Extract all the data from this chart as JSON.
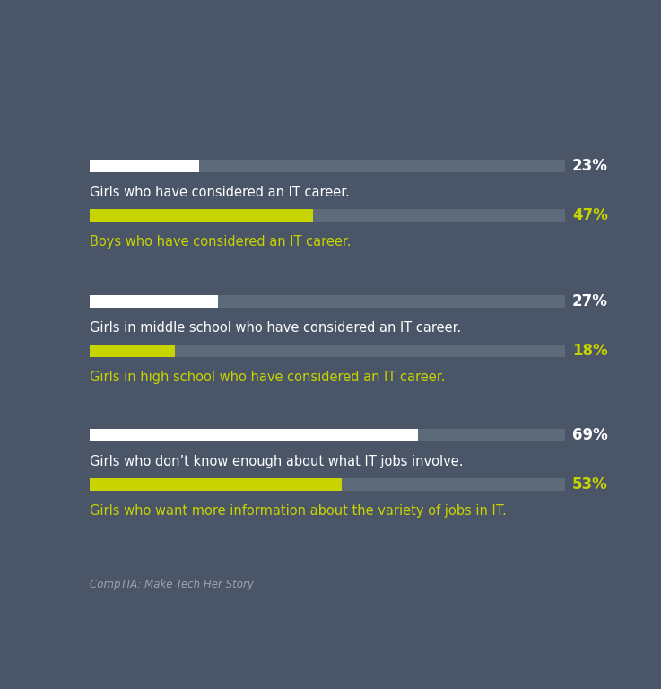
{
  "background_color": "#4a5568",
  "bar_track_color": "#5d6a7a",
  "white_bar_color": "#ffffff",
  "green_bar_color": "#c8d400",
  "white_text_color": "#ffffff",
  "green_text_color": "#c8d400",
  "source_text_color": "#9aa5b0",
  "groups": [
    {
      "bar1_value": 23,
      "bar1_label": "Girls who have considered an IT career.",
      "bar1_color": "#ffffff",
      "bar1_pct": "23%",
      "bar1_pct_color": "#ffffff",
      "bar2_value": 47,
      "bar2_label": "Boys who have considered an IT career.",
      "bar2_color": "#c8d400",
      "bar2_pct": "47%",
      "bar2_pct_color": "#c8d400"
    },
    {
      "bar1_value": 27,
      "bar1_label": "Girls in middle school who have considered an IT career.",
      "bar1_color": "#ffffff",
      "bar1_pct": "27%",
      "bar1_pct_color": "#ffffff",
      "bar2_value": 18,
      "bar2_label": "Girls in high school who have considered an IT career.",
      "bar2_color": "#c8d400",
      "bar2_pct": "18%",
      "bar2_pct_color": "#c8d400"
    },
    {
      "bar1_value": 69,
      "bar1_label": "Girls who don’t know enough about what IT jobs involve.",
      "bar1_color": "#ffffff",
      "bar1_pct": "69%",
      "bar1_pct_color": "#ffffff",
      "bar2_value": 53,
      "bar2_label": "Girls who want more information about the variety of jobs in IT.",
      "bar2_color": "#c8d400",
      "bar2_pct": "53%",
      "bar2_pct_color": "#c8d400"
    }
  ],
  "source_text": "CompTIA: Make Tech Her Story",
  "max_value": 100,
  "label_fontsize": 10.5,
  "pct_fontsize": 12,
  "source_fontsize": 8.5
}
